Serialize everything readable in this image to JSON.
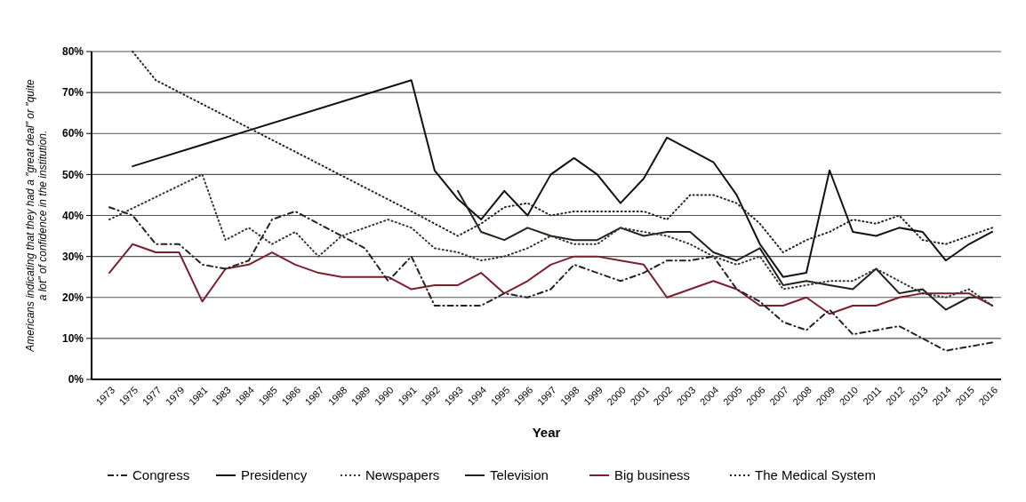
{
  "chart_data": {
    "type": "line",
    "xlabel": "Year",
    "ylabel": "Americans indicating that they had a \"great deal\" or \"quite a lot\" of confidence in the institution.",
    "categories": [
      "1973",
      "1975",
      "1977",
      "1979",
      "1981",
      "1983",
      "1984",
      "1985",
      "1986",
      "1987",
      "1988",
      "1989",
      "1990",
      "1991",
      "1992",
      "1993",
      "1994",
      "1995",
      "1996",
      "1997",
      "1998",
      "1999",
      "2000",
      "2001",
      "2002",
      "2003",
      "2004",
      "2005",
      "2006",
      "2007",
      "2008",
      "2009",
      "2010",
      "2011",
      "2012",
      "2013",
      "2014",
      "2015",
      "2016"
    ],
    "ylim": [
      0,
      80
    ],
    "yticks": [
      {
        "value": 0,
        "label": "0%"
      },
      {
        "value": 10,
        "label": "10%"
      },
      {
        "value": 20,
        "label": "20%"
      },
      {
        "value": 30,
        "label": "30%"
      },
      {
        "value": 40,
        "label": "40%"
      },
      {
        "value": 50,
        "label": "50%"
      },
      {
        "value": 60,
        "label": "60%"
      },
      {
        "value": 70,
        "label": "70%"
      },
      {
        "value": 80,
        "label": "80%"
      }
    ],
    "grid": "y",
    "legend": "bottom",
    "series": [
      {
        "name": "Congress",
        "color": "#222222",
        "line_style": "dashed",
        "values": [
          42,
          40,
          33,
          33,
          28,
          27,
          29,
          39,
          41,
          38,
          35,
          32,
          24,
          30,
          18,
          18,
          18,
          21,
          20,
          22,
          28,
          26,
          24,
          26,
          29,
          29,
          30,
          22,
          19,
          14,
          12,
          17,
          11,
          12,
          13,
          10,
          7,
          8,
          9
        ]
      },
      {
        "name": "Presidency",
        "color": "#111111",
        "line_style": "solid",
        "values": [
          null,
          52,
          null,
          null,
          null,
          null,
          null,
          null,
          null,
          null,
          null,
          null,
          null,
          73,
          51,
          44,
          39,
          46,
          40,
          50,
          54,
          50,
          43,
          49,
          59,
          56,
          53,
          45,
          33,
          25,
          26,
          51,
          36,
          35,
          37,
          36,
          29,
          33,
          36
        ]
      },
      {
        "name": "Newspapers",
        "color": "#333333",
        "line_style": "dotted",
        "values": [
          39,
          null,
          null,
          null,
          50,
          34,
          37,
          33,
          36,
          30,
          35,
          37,
          39,
          37,
          32,
          31,
          29,
          30,
          32,
          35,
          33,
          33,
          37,
          36,
          35,
          33,
          30,
          28,
          30,
          22,
          23,
          24,
          24,
          27,
          24,
          21,
          20,
          22,
          18
        ]
      },
      {
        "name": "Television",
        "color": "#1f2418",
        "line_style": "solid",
        "values": [
          null,
          null,
          null,
          null,
          null,
          null,
          null,
          null,
          null,
          null,
          null,
          null,
          null,
          null,
          null,
          46,
          36,
          34,
          37,
          35,
          34,
          34,
          37,
          35,
          36,
          36,
          31,
          29,
          32,
          23,
          24,
          23,
          22,
          27,
          21,
          22,
          17,
          20,
          20
        ]
      },
      {
        "name": "Big business",
        "color": "#7a1f2b",
        "line_style": "solid",
        "values": [
          26,
          33,
          31,
          31,
          19,
          27,
          28,
          31,
          28,
          26,
          25,
          25,
          25,
          22,
          23,
          23,
          26,
          21,
          24,
          28,
          30,
          30,
          29,
          28,
          20,
          22,
          24,
          22,
          18,
          18,
          20,
          16,
          18,
          18,
          20,
          21,
          21,
          21,
          18
        ]
      },
      {
        "name": "The Medical System",
        "color": "#222222",
        "line_style": "dotted",
        "values": [
          null,
          80,
          73,
          null,
          null,
          null,
          null,
          null,
          null,
          null,
          null,
          null,
          null,
          41,
          38,
          35,
          38,
          42,
          43,
          40,
          41,
          41,
          41,
          41,
          39,
          45,
          45,
          43,
          38,
          31,
          34,
          36,
          39,
          38,
          40,
          34,
          33,
          35,
          37
        ]
      }
    ]
  }
}
